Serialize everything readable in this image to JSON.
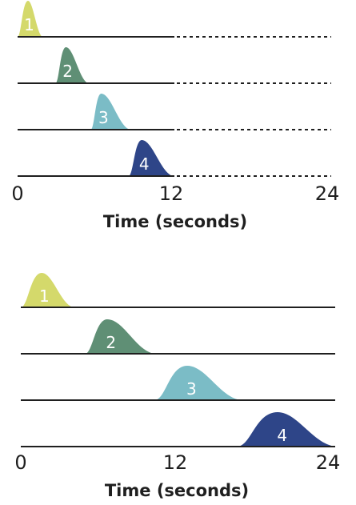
{
  "colors": {
    "1": "#d4d96b",
    "2": "#5f8f75",
    "3": "#7bbcc6",
    "4": "#2e4588"
  },
  "panels": [
    {
      "time_max": 24,
      "solid_until": 12,
      "ticks": [
        "0",
        "12",
        "24"
      ],
      "axis_title": "Time (seconds)",
      "pulses": [
        {
          "label": "1",
          "start": 0.0,
          "peak": 0.8,
          "end": 1.9
        },
        {
          "label": "2",
          "start": 2.9,
          "peak": 3.7,
          "end": 5.4
        },
        {
          "label": "3",
          "start": 5.6,
          "peak": 6.4,
          "end": 8.6
        },
        {
          "label": "4",
          "start": 8.5,
          "peak": 9.5,
          "end": 11.9
        }
      ]
    },
    {
      "time_max": 24,
      "solid_until": 24,
      "ticks": [
        "0",
        "12",
        "24"
      ],
      "axis_title": "Time (seconds)",
      "pulses": [
        {
          "label": "1",
          "start": 0.0,
          "peak": 1.6,
          "end": 4.0
        },
        {
          "label": "2",
          "start": 4.9,
          "peak": 6.6,
          "end": 10.2
        },
        {
          "label": "3",
          "start": 10.2,
          "peak": 12.7,
          "end": 16.8
        },
        {
          "label": "4",
          "start": 16.5,
          "peak": 19.6,
          "end": 24.0
        }
      ]
    }
  ]
}
